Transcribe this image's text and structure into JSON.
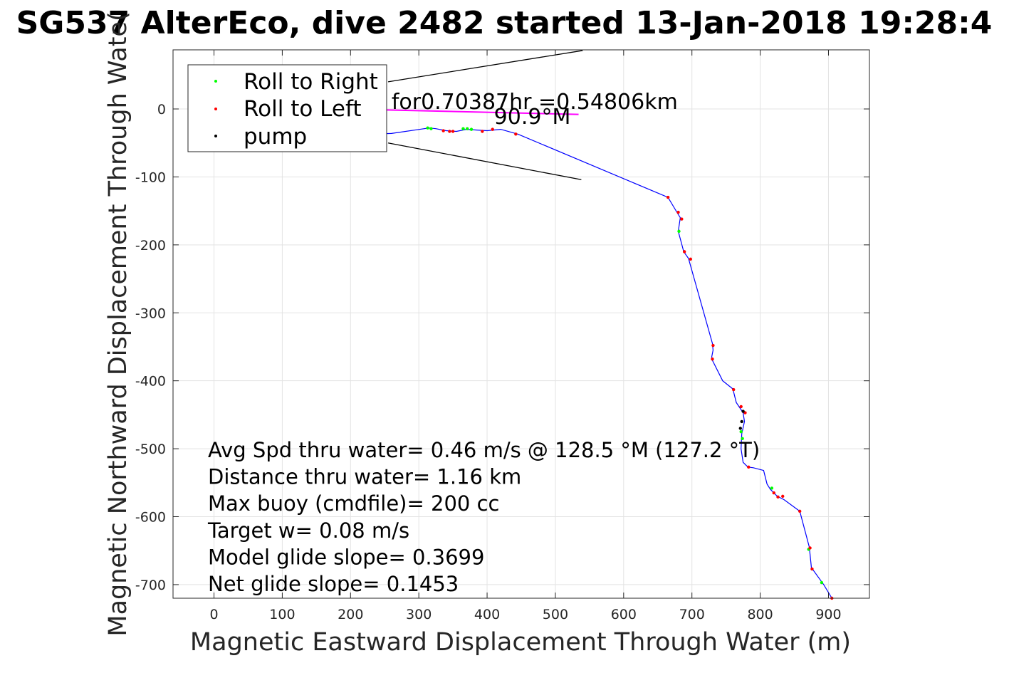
{
  "chart_data": {
    "type": "scatter",
    "title": "SG537 AlterEco, dive 2482 started 13-Jan-2018 19:28:4",
    "xlabel": "Magnetic Eastward Displacement Through Water (m)",
    "ylabel": "Magnetic Northward Displacement Through Wate(",
    "xlim": [
      -60,
      960
    ],
    "ylim": [
      -720,
      87
    ],
    "xticks": [
      0,
      100,
      200,
      300,
      400,
      500,
      600,
      700,
      800,
      900
    ],
    "yticks": [
      0,
      -100,
      -200,
      -300,
      -400,
      -500,
      -600,
      -700
    ],
    "grid": true,
    "legend_position": "top-left",
    "legend": [
      {
        "label": "Roll to Right",
        "color": "#00ff00"
      },
      {
        "label": "Roll to Left",
        "color": "#ff0000"
      },
      {
        "label": "pump",
        "color": "#000000"
      }
    ],
    "track_color": "#0000ff",
    "track": {
      "x": [
        200,
        260,
        315,
        325,
        340,
        355,
        370,
        385,
        400,
        420,
        445,
        665,
        678,
        683,
        680,
        684,
        688,
        695,
        730,
        731,
        729,
        730,
        745,
        760,
        765,
        775,
        777,
        773,
        772,
        775,
        782,
        790,
        805,
        810,
        815,
        820,
        825,
        835,
        858,
        872,
        875,
        893,
        905
      ],
      "y": [
        -38,
        -36,
        -28,
        -29,
        -32,
        -33,
        -30,
        -31,
        -32,
        -30,
        -37,
        -130,
        -152,
        -160,
        -180,
        -195,
        -210,
        -220,
        -345,
        -355,
        -365,
        -370,
        -400,
        -412,
        -432,
        -447,
        -460,
        -478,
        -500,
        -520,
        -527,
        -528,
        -532,
        -552,
        -560,
        -565,
        -570,
        -575,
        -592,
        -645,
        -675,
        -700,
        -720
      ]
    },
    "roll_right": {
      "x": [
        313,
        318,
        365,
        371,
        377,
        681,
        772,
        774,
        817,
        871,
        890
      ],
      "y": [
        -28,
        -29,
        -29,
        -29,
        -30,
        -180,
        -475,
        -485,
        -558,
        -648,
        -697
      ]
    },
    "roll_left": {
      "x": [
        336,
        345,
        350,
        393,
        408,
        442,
        665,
        680,
        685,
        689,
        698,
        731,
        730,
        761,
        772,
        778,
        783,
        820,
        826,
        833,
        858,
        873,
        876,
        905
      ],
      "y": [
        -32,
        -33,
        -33,
        -33,
        -30,
        -37,
        -130,
        -152,
        -162,
        -210,
        -221,
        -348,
        -368,
        -413,
        -438,
        -447,
        -527,
        -565,
        -571,
        -570,
        -592,
        -646,
        -677,
        -720
      ]
    },
    "pump": {
      "x": [
        775,
        773,
        771
      ],
      "y": [
        -445,
        -460,
        -470
      ]
    },
    "heading_line": {
      "x": [
        235,
        534
      ],
      "y": [
        -1,
        -8
      ],
      "color": "#ff00ff"
    },
    "annotation_lines": [
      {
        "x": [
          255,
          540
        ],
        "y": [
          40,
          86
        ]
      },
      {
        "x": [
          255,
          538
        ],
        "y": [
          -50,
          -104
        ]
      }
    ],
    "annotations": [
      {
        "text": "for0.70387hr =0.54806km",
        "x": 260,
        "y": 0
      },
      {
        "text": "90.9°M",
        "x": 410,
        "y": -22
      }
    ],
    "info_lines": [
      "Avg Spd thru water=  0.46 m/s @ 128.5 °M (127.2 °T)",
      "Distance thru water=  1.16 km",
      "Max buoy (cmdfile)= 200 cc",
      "Target w= 0.08 m/s",
      "Model glide slope= 0.3699",
      "Net glide slope= 0.1453"
    ]
  }
}
